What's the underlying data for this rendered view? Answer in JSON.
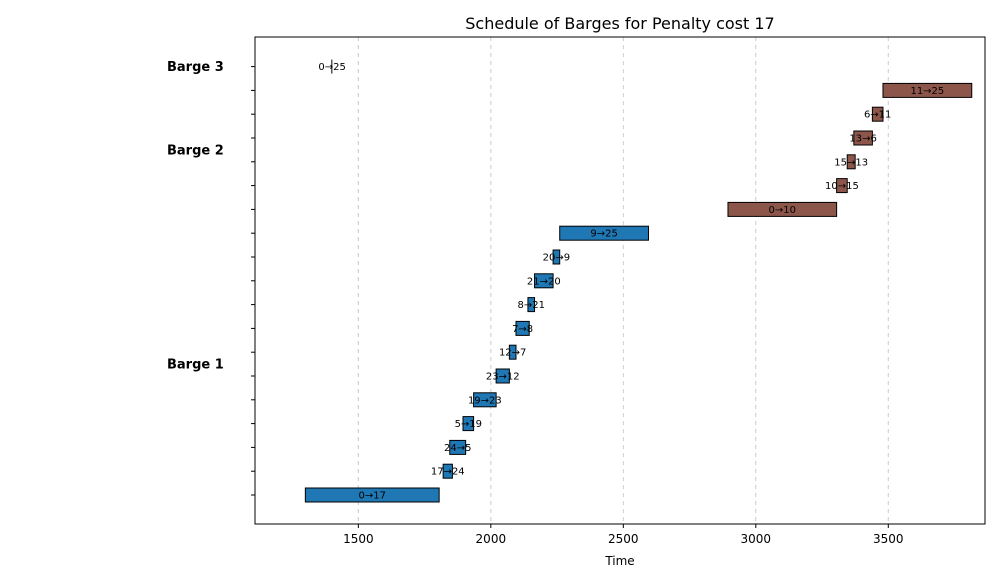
{
  "chart_data": {
    "type": "gantt",
    "title": "Schedule of Barges for Penalty cost 17",
    "xlabel": "Time",
    "xlim": [
      1110,
      3865
    ],
    "xticks": [
      1500,
      2000,
      2500,
      3000,
      3500
    ],
    "grid": "vertical-dashed",
    "barges": [
      {
        "name": "Barge 1",
        "color": "#1f77b4"
      },
      {
        "name": "Barge 2",
        "color": "#8c564b"
      },
      {
        "name": "Barge 3",
        "color": "#1f77b4"
      }
    ],
    "tasks": [
      {
        "barge": 0,
        "label": "0→17",
        "start": 1300,
        "end": 1805
      },
      {
        "barge": 0,
        "label": "17→24",
        "start": 1820,
        "end": 1855
      },
      {
        "barge": 0,
        "label": "24→5",
        "start": 1845,
        "end": 1905
      },
      {
        "barge": 0,
        "label": "5→19",
        "start": 1895,
        "end": 1935
      },
      {
        "barge": 0,
        "label": "19→23",
        "start": 1935,
        "end": 2020
      },
      {
        "barge": 0,
        "label": "23→12",
        "start": 2020,
        "end": 2070
      },
      {
        "barge": 0,
        "label": "12→7",
        "start": 2070,
        "end": 2095
      },
      {
        "barge": 0,
        "label": "7→8",
        "start": 2095,
        "end": 2145
      },
      {
        "barge": 0,
        "label": "8→21",
        "start": 2140,
        "end": 2165
      },
      {
        "barge": 0,
        "label": "21→20",
        "start": 2165,
        "end": 2235
      },
      {
        "barge": 0,
        "label": "20→9",
        "start": 2235,
        "end": 2260
      },
      {
        "barge": 0,
        "label": "9→25",
        "start": 2260,
        "end": 2595
      },
      {
        "barge": 1,
        "label": "0→10",
        "start": 2895,
        "end": 3305
      },
      {
        "barge": 1,
        "label": "10→15",
        "start": 3305,
        "end": 3345
      },
      {
        "barge": 1,
        "label": "15→13",
        "start": 3345,
        "end": 3375
      },
      {
        "barge": 1,
        "label": "13→6",
        "start": 3370,
        "end": 3440
      },
      {
        "barge": 1,
        "label": "6→11",
        "start": 3440,
        "end": 3480
      },
      {
        "barge": 1,
        "label": "11→25",
        "start": 3480,
        "end": 3815
      },
      {
        "barge": 2,
        "label": "0→25",
        "start": 1400,
        "end": 1402
      }
    ],
    "barge_label_rows": [
      {
        "barge": 2,
        "row": 18
      },
      {
        "barge": 1,
        "row": 14.5
      },
      {
        "barge": 0,
        "row": 5.5
      }
    ]
  }
}
